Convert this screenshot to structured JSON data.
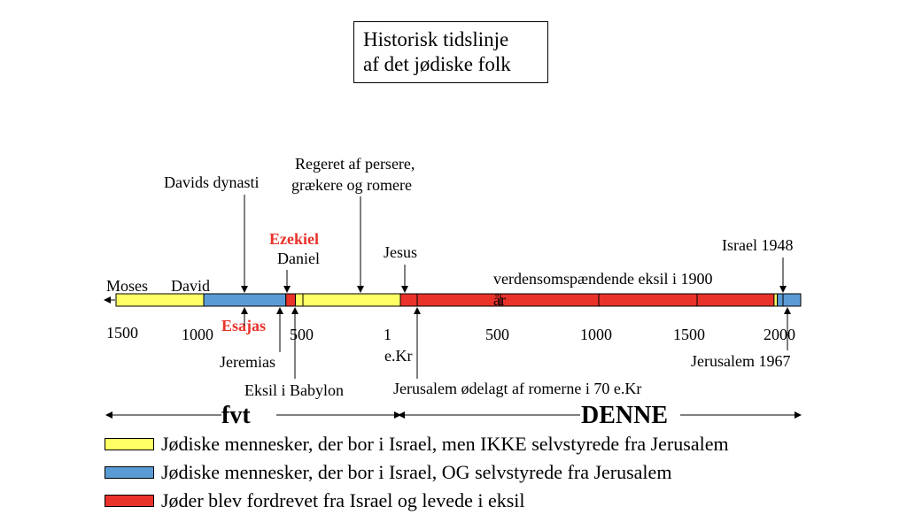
{
  "title": {
    "line1": "Historisk tidslinje",
    "line2": "af det jødiske folk"
  },
  "colors": {
    "yellow": "#ffff66",
    "blue": "#5b9bd5",
    "red": "#e8322a"
  },
  "timeline": {
    "segments": [
      {
        "from": 1500,
        "to": 1000,
        "color": "yellow"
      },
      {
        "from": 1000,
        "to": 586,
        "color": "blue"
      },
      {
        "from": 586,
        "to": 538,
        "color": "red"
      },
      {
        "from": 538,
        "to": 0,
        "color": "yellow"
      },
      {
        "from": 0,
        "to": 70,
        "color": "red"
      },
      {
        "from": 70,
        "to": 1948,
        "color": "red"
      },
      {
        "from": 1948,
        "to": 1967,
        "color": "yellow"
      },
      {
        "from": 1967,
        "to": 2010,
        "color": "blue"
      }
    ],
    "tick_labels": [
      "1500",
      "1000",
      "500",
      "1",
      "500",
      "1000",
      "1500",
      "2000"
    ],
    "tick_sub": "e.Kr"
  },
  "annotations": {
    "moses": "Moses",
    "david": "David",
    "davids_dynasti": "Davids dynasti",
    "ezekiel": "Ezekiel",
    "daniel": "Daniel",
    "regeret_1": "Regeret af persere,",
    "regeret_2": "grækere og romere",
    "jesus": "Jesus",
    "eksil_1900": "verdensomspændende eksil i 1900",
    "ar": "år",
    "israel_1948": "Israel 1948",
    "esajas": "Esajas",
    "jeremias": "Jeremias",
    "eksil_babylon": "Eksil i Babylon",
    "jerusalem_1967": "Jerusalem 1967",
    "jerusalem_70": "Jerusalem ødelagt af romerne i 70 e.Kr"
  },
  "eras": {
    "fvt": "fvt",
    "denne": "DENNE"
  },
  "legend": [
    {
      "color": "yellow",
      "text": "Jødiske mennesker, der bor i Israel, men IKKE selvstyrede fra Jerusalem"
    },
    {
      "color": "blue",
      "text": "Jødiske mennesker, der bor i Israel, OG selvstyrede fra Jerusalem"
    },
    {
      "color": "red",
      "text": "Jøder blev fordrevet fra Israel og levede i eksil"
    }
  ]
}
